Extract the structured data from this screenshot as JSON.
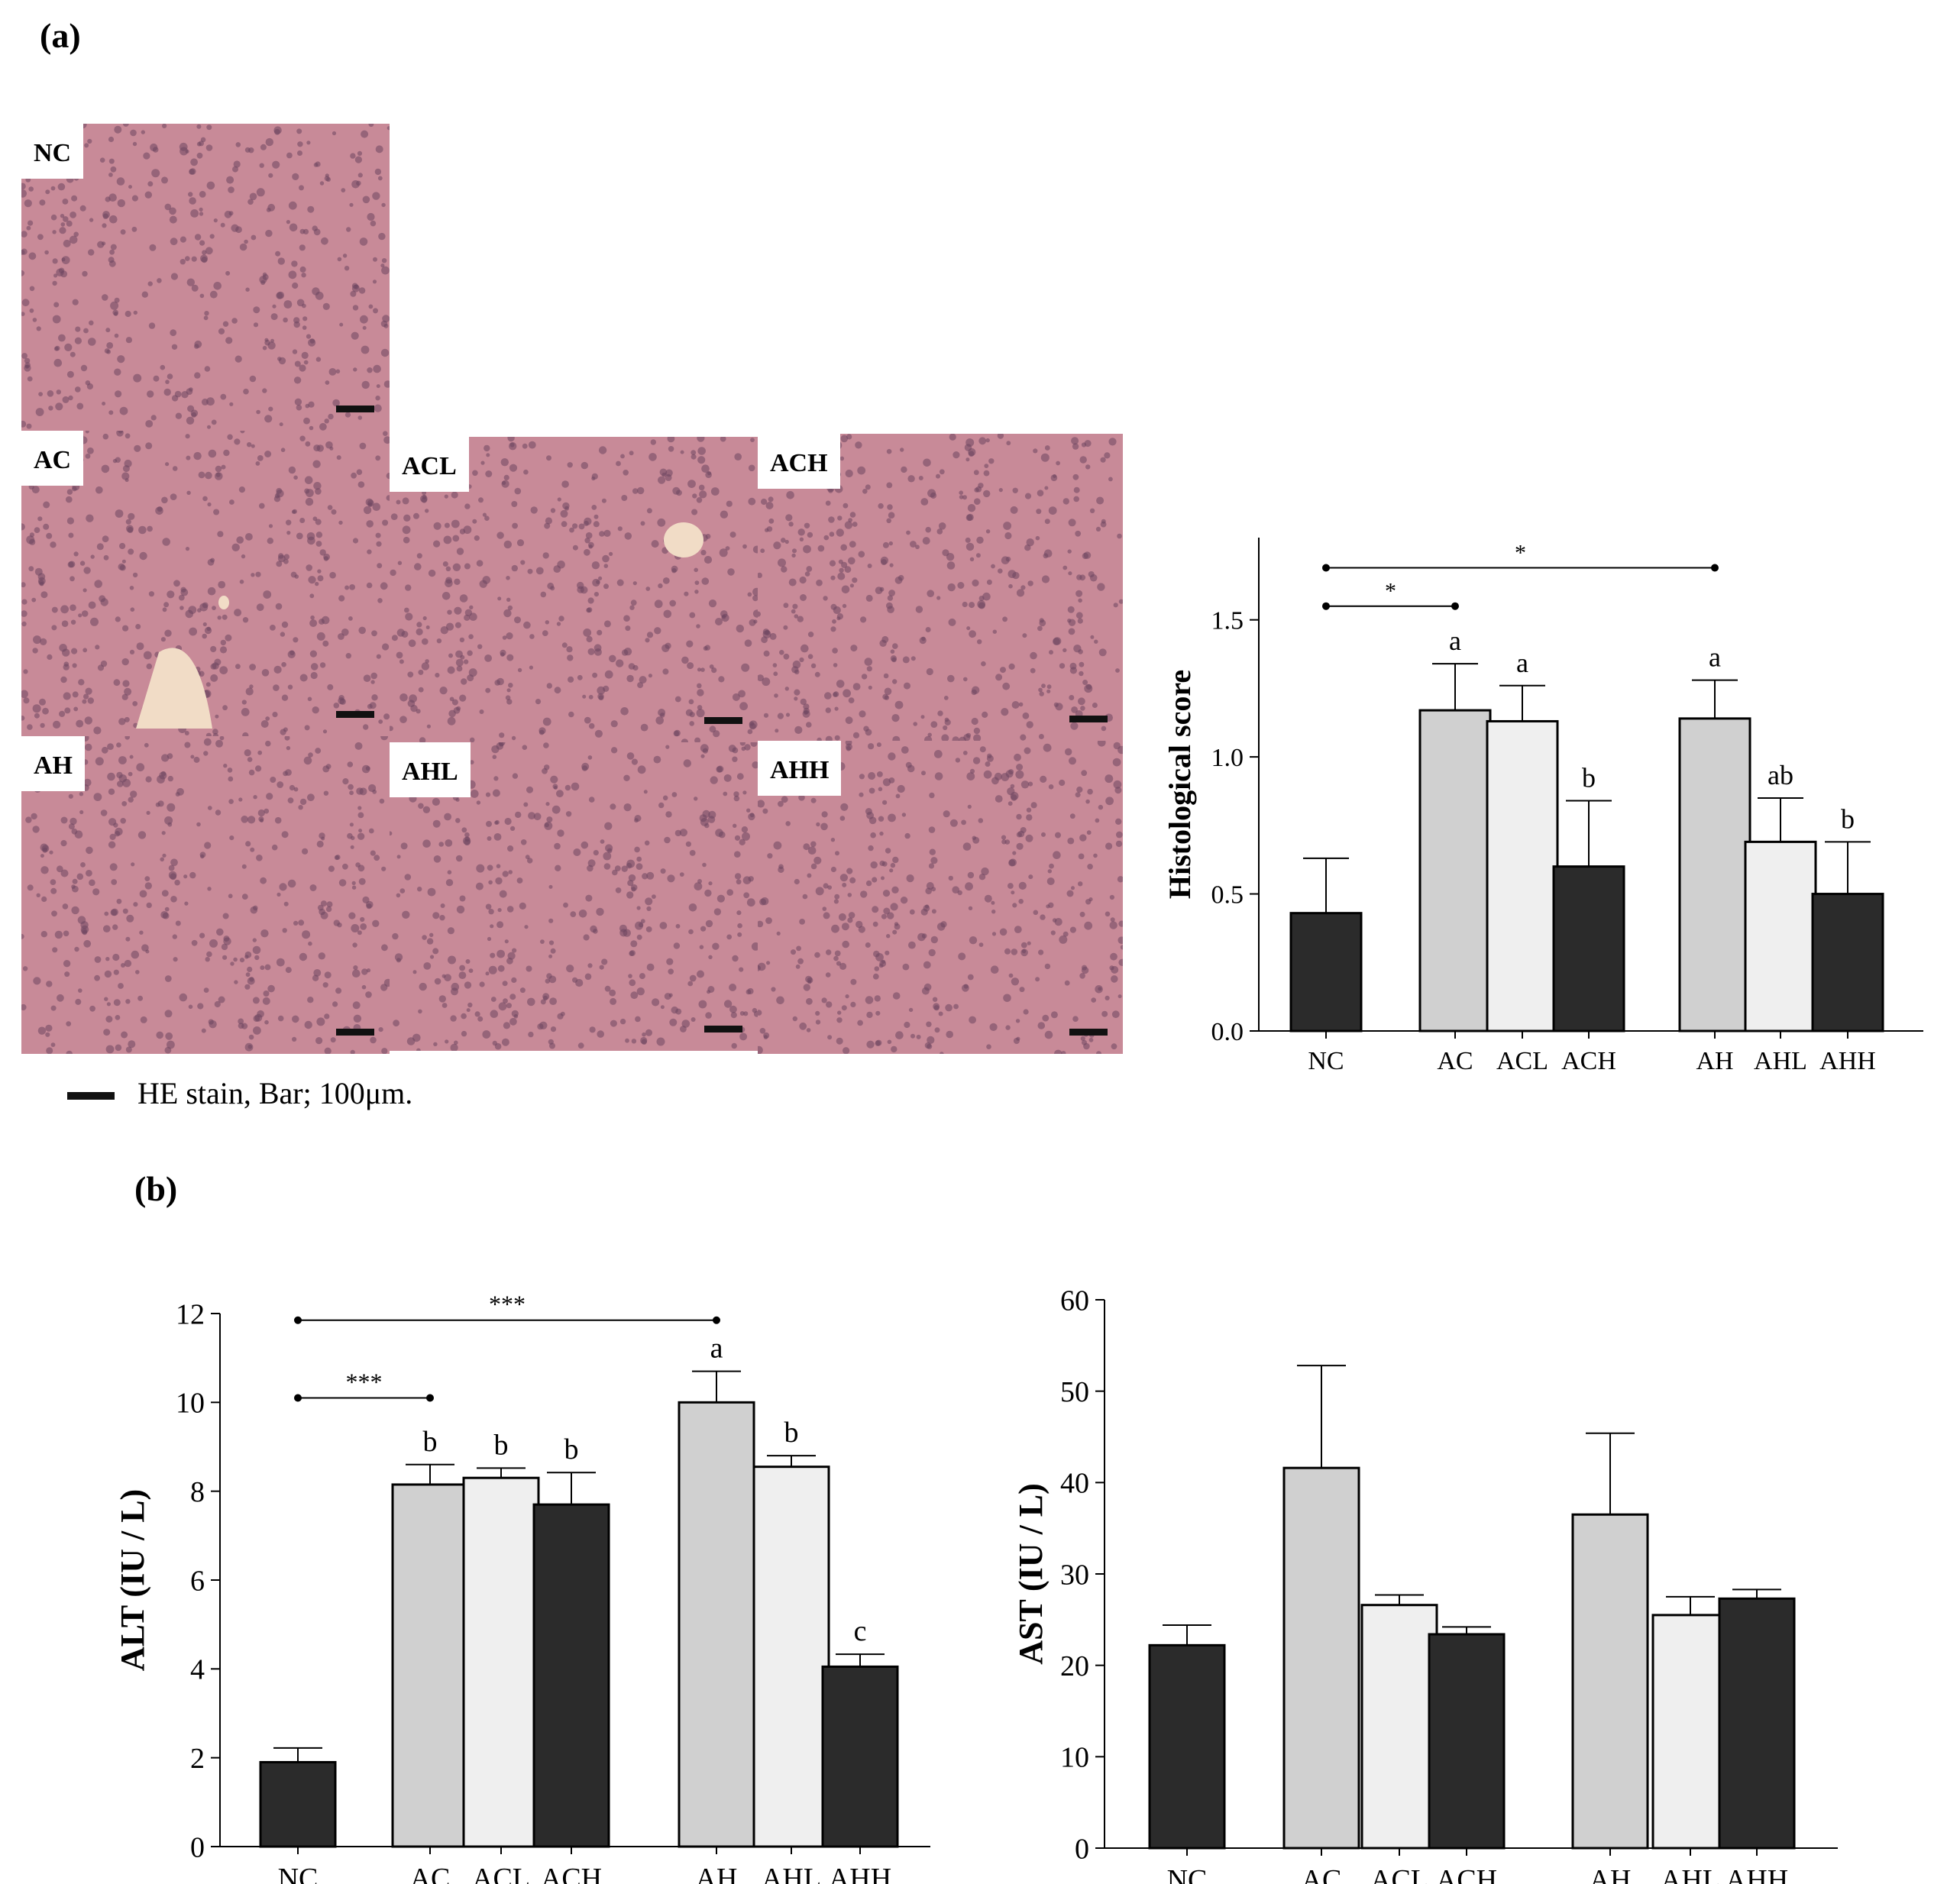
{
  "panels": {
    "a": "(a)",
    "b": "(b)"
  },
  "micrographs": {
    "labels": [
      "NC",
      "AC",
      "ACL",
      "ACH",
      "AH",
      "AHL",
      "AHH"
    ],
    "legend": "HE stain, Bar; 100μm."
  },
  "colors": {
    "dark": "#2b2b2b",
    "mid": "#d0d0d0",
    "light": "#efefef",
    "tissue": "#c88a98",
    "nuclei": "#6e4560",
    "vessel": "#f1dcc6"
  },
  "chart_data": [
    {
      "id": "histo",
      "type": "bar",
      "ylabel": "Histological score",
      "ylim": [
        0,
        1.8
      ],
      "yticks": [
        0.0,
        0.5,
        1.0,
        1.5
      ],
      "ytick_labels": [
        "0.0",
        "0.5",
        "1.0",
        "1.5"
      ],
      "categories": [
        "NC",
        "AC",
        "ACL",
        "ACH",
        "AH",
        "AHL",
        "AHH"
      ],
      "values": [
        0.43,
        1.17,
        1.13,
        0.6,
        1.14,
        0.69,
        0.5
      ],
      "errors": [
        0.2,
        0.17,
        0.13,
        0.24,
        0.14,
        0.16,
        0.19
      ],
      "fills": [
        "dark",
        "mid",
        "light",
        "dark",
        "mid",
        "light",
        "dark"
      ],
      "letters": [
        "",
        "a",
        "a",
        "b",
        "a",
        "ab",
        "b"
      ],
      "significance": [
        {
          "from": "NC",
          "to": "AC",
          "label": "*",
          "y": 1.55
        },
        {
          "from": "NC",
          "to": "AH",
          "label": "*",
          "y": 1.69
        }
      ]
    },
    {
      "id": "alt",
      "type": "bar",
      "ylabel": "ALT (IU / L)",
      "ylim": [
        0,
        12
      ],
      "yticks": [
        0,
        2,
        4,
        6,
        8,
        10,
        12
      ],
      "ytick_labels": [
        "0",
        "2",
        "4",
        "6",
        "8",
        "10",
        "12"
      ],
      "categories": [
        "NC",
        "AC",
        "ACL",
        "ACH",
        "AH",
        "AHL",
        "AHH"
      ],
      "values": [
        1.9,
        8.15,
        8.3,
        7.7,
        10.0,
        8.55,
        4.05
      ],
      "errors": [
        0.32,
        0.45,
        0.22,
        0.72,
        0.7,
        0.25,
        0.28
      ],
      "fills": [
        "dark",
        "mid",
        "light",
        "dark",
        "mid",
        "light",
        "dark"
      ],
      "letters": [
        "",
        "b",
        "b",
        "b",
        "a",
        "b",
        "c"
      ],
      "significance": [
        {
          "from": "NC",
          "to": "AC",
          "label": "***",
          "y": 10.1
        },
        {
          "from": "NC",
          "to": "AH",
          "label": "***",
          "y": 11.85
        }
      ]
    },
    {
      "id": "ast",
      "type": "bar",
      "ylabel": "AST (IU / L)",
      "ylim": [
        0,
        60
      ],
      "yticks": [
        0,
        10,
        20,
        30,
        40,
        50,
        60
      ],
      "ytick_labels": [
        "0",
        "10",
        "20",
        "30",
        "40",
        "50",
        "60"
      ],
      "categories": [
        "NC",
        "AC",
        "ACL",
        "ACH",
        "AH",
        "AHL",
        "AHH"
      ],
      "values": [
        22.2,
        41.6,
        26.6,
        23.4,
        36.5,
        25.5,
        27.3
      ],
      "errors": [
        2.2,
        11.2,
        1.1,
        0.8,
        8.9,
        2.0,
        1.0
      ],
      "fills": [
        "dark",
        "mid",
        "light",
        "dark",
        "mid",
        "light",
        "dark"
      ],
      "letters": [
        "",
        "",
        "",
        "",
        "",
        "",
        ""
      ],
      "significance": []
    }
  ]
}
